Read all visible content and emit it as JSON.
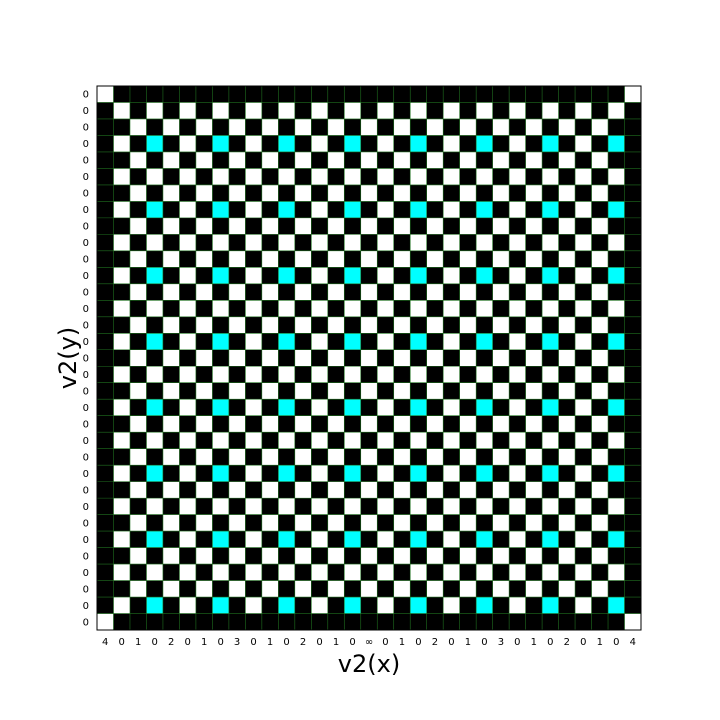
{
  "chart_data": {
    "type": "heatmap",
    "title": "",
    "xlabel": "v2(x)",
    "ylabel": "v2(y)",
    "x_tick_labels": [
      "4",
      "0",
      "1",
      "0",
      "2",
      "0",
      "1",
      "0",
      "3",
      "0",
      "1",
      "0",
      "2",
      "0",
      "1",
      "0",
      "∞",
      "0",
      "1",
      "0",
      "2",
      "0",
      "1",
      "0",
      "3",
      "0",
      "1",
      "0",
      "2",
      "0",
      "1",
      "0",
      "4"
    ],
    "y_tick_labels": [
      "0",
      "0",
      "0",
      "0",
      "0",
      "0",
      "0",
      "0",
      "0",
      "0",
      "0",
      "0",
      "0",
      "0",
      "0",
      "0",
      "0",
      "0",
      "0",
      "0",
      "0",
      "0",
      "0",
      "0",
      "0",
      "0",
      "0",
      "0",
      "0",
      "0",
      "0",
      "0",
      "0"
    ],
    "grid": true,
    "legend": "none",
    "colors": {
      "white": "#ffffff",
      "black": "#000000",
      "cyan": "#00ffff",
      "grid": "#1f6f1f"
    },
    "rows": [
      "WKKKKKKKKKKKKKKKKKKKKKKKKKKKKKKKW",
      "KWKWKWKWKWKWKWKWKWKWKWKWKWKWKWKWK",
      "KKWKWKWKWKWKWKWKWKWKWKWKWKWKWKWKK",
      "KWKCKWKCKWKCKWKCKWKCKWKCKWKCKWKCK",
      "KKWKWKWKWKWKWKWKWKWKWKWKWKWKWKWKK",
      "KWKWKWKWKWKWKWKWKWKWKWKWKWKWKWKWK",
      "KKWKWKWKWKWKWKWKWKWKWKWKWKWKWKWKK",
      "KWKCKWKCKWKCKWKCKWKCKWKCKWKCKWKCK",
      "KKWKWKWKWKWKWKWKWKWKWKWKWKWKWKWKK",
      "KWKWKWKWKWKWKWKWKWKWKWKWKWKWKWKWK",
      "KKWKWKWKWKWKWKWKWKWKWKWKWKWKWKWKK",
      "KWKCKWKCKWKCKWKCKWKCKWKCKWKCKWKCK",
      "KKWKWKWKWKWKWKWKWKWKWKWKWKWKWKWKK",
      "KWKWKWKWKWKWKWKWKWKWKWKWKWKWKWKWK",
      "KKWKWKWKWKWKWKWKWKWKWKWKWKWKWKWKK",
      "KWKCKWKCKWKCKWKCKWKCKWKCKWKCKWKCK",
      "KKWKWKWKWKWKWKWKWKWKWKWKWKWKWKWKK",
      "KWKWKWKWKWKWKWKWKWKWKWKWKWKWKWKWK",
      "KKWKWKWKWKWKWKWKWKWKWKWKWKWKWKWKK",
      "KWKCKWKCKWKCKWKCKWKCKWKCKWKCKWKCK",
      "KKWKWKWKWKWKWKWKWKWKWKWKWKWKWKWKK",
      "KWKWKWKWKWKWKWKWKWKWKWKWKWKWKWKWK",
      "KKWKWKWKWKWKWKWKWKWKWKWKWKWKWKWKK",
      "KWKCKWKCKWKCKWKCKWKCKWKCKWKCKWKCK",
      "KKWKWKWKWKWKWKWKWKWKWKWKWKWKWKWKK",
      "KWKWKWKWKWKWKWKWKWKWKWKWKWKWKWKWK",
      "KKWKWKWKWKWKWKWKWKWKWKWKWKWKWKWKK",
      "KWKCKWKCKWKCKWKCKWKCKWKCKWKCKWKCK",
      "KKWKWKWKWKWKWKWKWKWKWKWKWKWKWKWKK",
      "KWKWKWKWKWKWKWKWKWKWKWKWKWKWKWKWK",
      "KKWKWKWKWKWKWKWKWKWKWKWKWKWKWKWKK",
      "KWKCKWKCKWKCKWKCKWKCKWKCKWKCKWKCK",
      "WKKKKKKKKKKKKKKKKKKKKKKKKKKKKKKKW"
    ]
  }
}
